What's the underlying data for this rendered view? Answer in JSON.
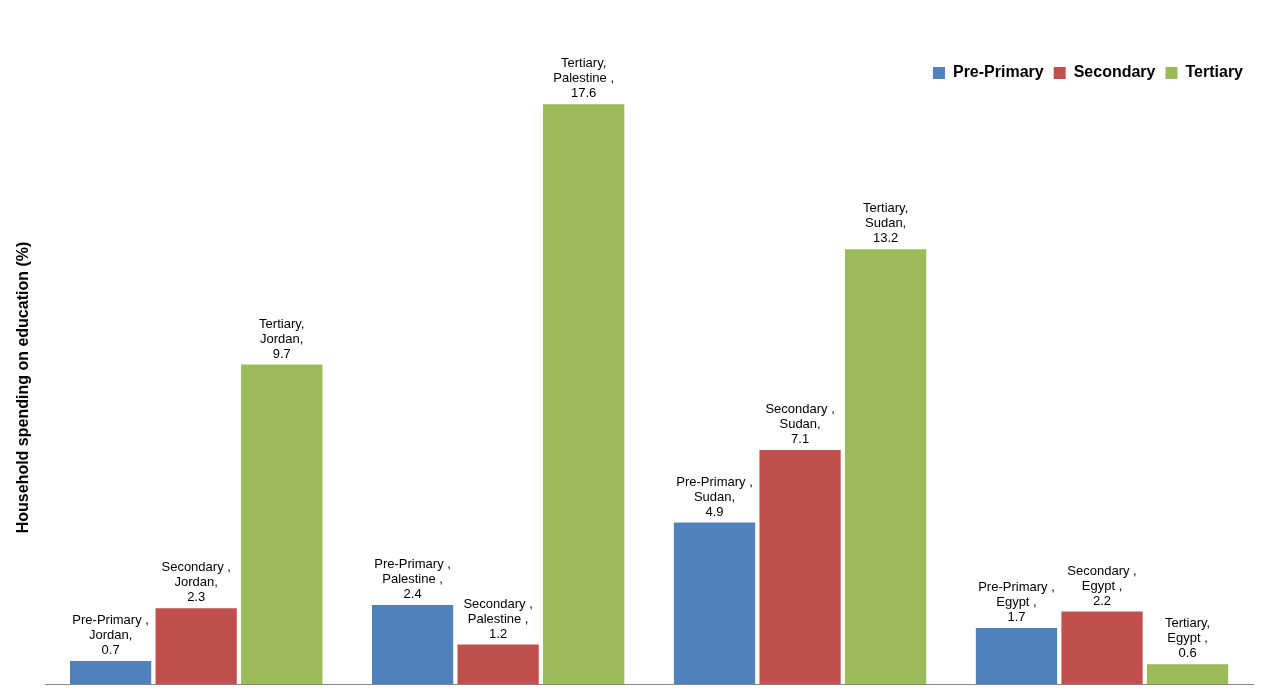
{
  "chart_data": {
    "type": "bar",
    "ylabel": "Household spending on education (%)",
    "categories": [
      null,
      null,
      null,
      null
    ],
    "series": [
      {
        "name": "Pre-Primary",
        "color": "#4f81bd",
        "values": [
          0.7,
          2.4,
          4.9,
          1.7
        ],
        "value_labels": [
          "Pre-Primary , Jordan, 0.7",
          "Pre-Primary , Palestine , 2.4",
          "Pre-Primary , Sudan, 4.9",
          "Pre-Primary , Egypt , 1.7"
        ]
      },
      {
        "name": "Secondary",
        "color": "#c0504d",
        "values": [
          2.3,
          1.2,
          7.1,
          2.2
        ],
        "value_labels": [
          "Secondary , Jordan, 2.3",
          "Secondary , Palestine , 1.2",
          "Secondary , Sudan, 7.1",
          "Secondary , Egypt , 2.2"
        ]
      },
      {
        "name": "Tertiary",
        "color": "#9bbb59",
        "values": [
          9.7,
          17.6,
          13.2,
          0.6
        ],
        "value_labels": [
          "Tertiary, Jordan, 9.7",
          "Tertiary, Palestine , 17.6",
          "Tertiary, Sudan, 13.2",
          "Tertiary, Egypt , 0.6"
        ]
      }
    ],
    "legend": "top right",
    "grid": false,
    "tick_labels": false
  }
}
